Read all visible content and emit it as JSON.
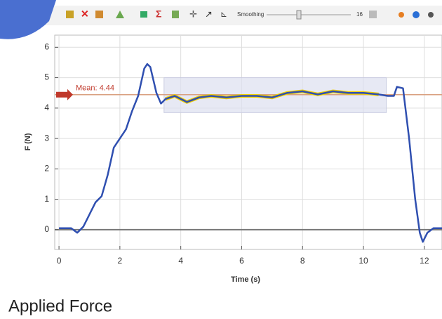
{
  "toolbar": {
    "smoothing_label": "Smoothing",
    "smoothing_value": "16"
  },
  "chart_data": {
    "type": "line",
    "title": "Applied Force",
    "xlabel": "Time (s)",
    "ylabel": "F (N)",
    "xlim": [
      -0.14,
      12.58
    ],
    "xticks": [
      0,
      2,
      4,
      6,
      8,
      10,
      12
    ],
    "ylim": [
      -0.65,
      6.4
    ],
    "yticks": [
      0,
      1,
      2,
      3,
      4,
      5,
      6
    ],
    "grid": true,
    "series": [
      {
        "color": "#2f4fb0",
        "x": [
          0,
          0.4,
          0.6,
          0.8,
          1.0,
          1.2,
          1.4,
          1.6,
          1.8,
          2.0,
          2.2,
          2.4,
          2.6,
          2.8,
          2.9,
          3.0,
          3.2,
          3.35,
          3.5,
          3.8,
          4.2,
          4.6,
          5.0,
          5.5,
          6.0,
          6.5,
          7.0,
          7.5,
          8.0,
          8.5,
          9.0,
          9.5,
          10.0,
          10.5,
          10.8,
          11.0,
          11.1,
          11.3,
          11.5,
          11.7,
          11.85,
          11.95,
          12.1,
          12.3,
          12.58
        ],
        "values": [
          0.05,
          0.05,
          -0.1,
          0.1,
          0.5,
          0.9,
          1.1,
          1.8,
          2.7,
          3.0,
          3.3,
          3.9,
          4.4,
          5.3,
          5.45,
          5.35,
          4.5,
          4.15,
          4.3,
          4.4,
          4.2,
          4.35,
          4.4,
          4.35,
          4.4,
          4.4,
          4.35,
          4.5,
          4.55,
          4.45,
          4.55,
          4.5,
          4.5,
          4.45,
          4.4,
          4.4,
          4.7,
          4.65,
          3.0,
          1.0,
          -0.1,
          -0.4,
          -0.1,
          0.05,
          0.05
        ]
      }
    ],
    "selection": {
      "x": [
        3.45,
        10.75
      ],
      "y": [
        3.85,
        5.0
      ],
      "color": "#dde0f0",
      "highlight_color": "#f0d000"
    },
    "mean": {
      "value": 4.44,
      "label": "Mean: 4.44",
      "color": "#c0392b",
      "line_color": "#d9a080"
    }
  }
}
